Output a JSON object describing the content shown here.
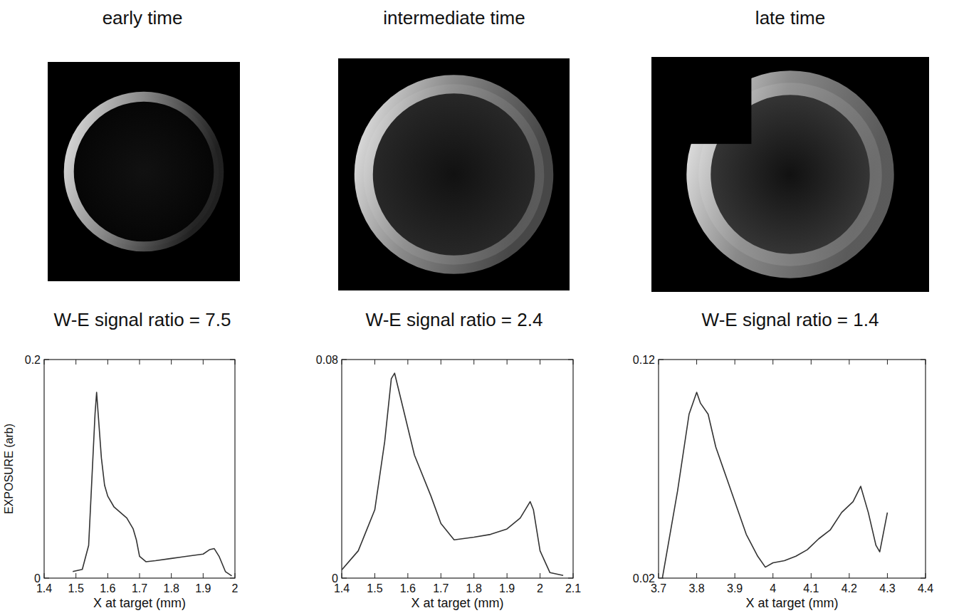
{
  "chart_data": [
    {
      "type": "line",
      "title": "early time",
      "annotation": "W-E signal ratio = 7.5",
      "x_label": "X at target (mm)",
      "y_label": "EXPOSURE (arb)",
      "color": "#333333",
      "x": [
        1.49,
        1.52,
        1.54,
        1.55,
        1.56,
        1.565,
        1.57,
        1.58,
        1.59,
        1.6,
        1.62,
        1.64,
        1.66,
        1.68,
        1.69,
        1.7,
        1.72,
        1.75,
        1.8,
        1.85,
        1.9,
        1.92,
        1.935,
        1.95,
        1.97,
        1.99
      ],
      "values": [
        0.006,
        0.008,
        0.03,
        0.09,
        0.15,
        0.17,
        0.15,
        0.11,
        0.085,
        0.075,
        0.065,
        0.06,
        0.055,
        0.045,
        0.035,
        0.02,
        0.015,
        0.016,
        0.018,
        0.02,
        0.022,
        0.026,
        0.027,
        0.02,
        0.006,
        0.002
      ],
      "xlim": [
        1.4,
        2
      ],
      "ylim": [
        0,
        0.2
      ],
      "xticks": [
        1.4,
        1.5,
        1.6,
        1.7,
        1.8,
        1.9,
        2
      ],
      "yticks": [
        0,
        0.2
      ]
    },
    {
      "type": "line",
      "title": "intermediate time",
      "annotation": "W-E signal ratio = 2.4",
      "x_label": "X at target (mm)",
      "color": "#333333",
      "x": [
        1.4,
        1.45,
        1.5,
        1.53,
        1.55,
        1.56,
        1.58,
        1.62,
        1.67,
        1.7,
        1.74,
        1.8,
        1.85,
        1.9,
        1.94,
        1.97,
        1.98,
        2.0,
        2.03,
        2.07
      ],
      "values": [
        0.003,
        0.01,
        0.025,
        0.05,
        0.073,
        0.075,
        0.065,
        0.045,
        0.03,
        0.02,
        0.014,
        0.015,
        0.016,
        0.018,
        0.022,
        0.028,
        0.025,
        0.01,
        0.002,
        0.001
      ],
      "xlim": [
        1.4,
        2.1
      ],
      "ylim": [
        0,
        0.08
      ],
      "xticks": [
        1.4,
        1.5,
        1.6,
        1.7,
        1.8,
        1.9,
        2,
        2.1
      ],
      "yticks": [
        0,
        0.08
      ]
    },
    {
      "type": "line",
      "title": "late time",
      "annotation": "W-E signal ratio = 1.4",
      "x_label": "X at target (mm)",
      "color": "#333333",
      "x": [
        3.71,
        3.75,
        3.78,
        3.8,
        3.81,
        3.83,
        3.85,
        3.88,
        3.9,
        3.93,
        3.96,
        3.98,
        4.0,
        4.03,
        4.06,
        4.09,
        4.12,
        4.15,
        4.18,
        4.21,
        4.23,
        4.25,
        4.27,
        4.28,
        4.3
      ],
      "values": [
        0.02,
        0.06,
        0.095,
        0.105,
        0.1,
        0.095,
        0.08,
        0.065,
        0.055,
        0.04,
        0.03,
        0.025,
        0.027,
        0.028,
        0.03,
        0.033,
        0.038,
        0.042,
        0.05,
        0.055,
        0.062,
        0.05,
        0.035,
        0.032,
        0.05
      ],
      "xlim": [
        3.7,
        4.4
      ],
      "ylim": [
        0.02,
        0.12
      ],
      "xticks": [
        3.7,
        3.8,
        3.9,
        4,
        4.1,
        4.2,
        4.3,
        4.4
      ],
      "yticks": [
        0.02,
        0.12
      ]
    }
  ]
}
